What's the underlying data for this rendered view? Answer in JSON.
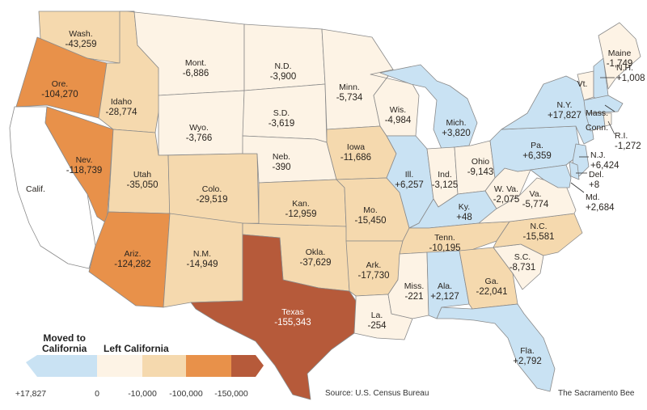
{
  "states": {
    "CA": {
      "name": "Calif.",
      "value": "",
      "fill": "#ffffff"
    },
    "WA": {
      "name": "Wash.",
      "value": "-43,259",
      "fill": "#f5d9ae"
    },
    "OR": {
      "name": "Ore.",
      "value": "-104,270",
      "fill": "#e8914a"
    },
    "ID": {
      "name": "Idaho",
      "value": "-28,774",
      "fill": "#f5d9ae"
    },
    "NV": {
      "name": "Nev.",
      "value": "-118,739",
      "fill": "#e8914a"
    },
    "MT": {
      "name": "Mont.",
      "value": "-6,886",
      "fill": "#fdf3e5"
    },
    "WY": {
      "name": "Wyo.",
      "value": "-3,766",
      "fill": "#fdf3e5"
    },
    "UT": {
      "name": "Utah",
      "value": "-35,050",
      "fill": "#f5d9ae"
    },
    "CO": {
      "name": "Colo.",
      "value": "-29,519",
      "fill": "#f5d9ae"
    },
    "AZ": {
      "name": "Ariz.",
      "value": "-124,282",
      "fill": "#e8914a"
    },
    "NM": {
      "name": "N.M.",
      "value": "-14,949",
      "fill": "#f5d9ae"
    },
    "ND": {
      "name": "N.D.",
      "value": "-3,900",
      "fill": "#fdf3e5"
    },
    "SD": {
      "name": "S.D.",
      "value": "-3,619",
      "fill": "#fdf3e5"
    },
    "NE": {
      "name": "Neb.",
      "value": "-390",
      "fill": "#fdf3e5"
    },
    "KS": {
      "name": "Kan.",
      "value": "-12,959",
      "fill": "#f5d9ae"
    },
    "OK": {
      "name": "Okla.",
      "value": "-37,629",
      "fill": "#f5d9ae"
    },
    "TX": {
      "name": "Texas",
      "value": "-155,343",
      "fill": "#b65a3a"
    },
    "MN": {
      "name": "Minn.",
      "value": "-5,734",
      "fill": "#fdf3e5"
    },
    "IA": {
      "name": "Iowa",
      "value": "-11,686",
      "fill": "#f5d9ae"
    },
    "MO": {
      "name": "Mo.",
      "value": "-15,450",
      "fill": "#f5d9ae"
    },
    "AR": {
      "name": "Ark.",
      "value": "-17,730",
      "fill": "#f5d9ae"
    },
    "LA": {
      "name": "La.",
      "value": "-254",
      "fill": "#fdf3e5"
    },
    "WI": {
      "name": "Wis.",
      "value": "-4,984",
      "fill": "#fdf3e5"
    },
    "IL": {
      "name": "Ill.",
      "value": "+6,257",
      "fill": "#c9e2f3"
    },
    "MI": {
      "name": "Mich.",
      "value": "+3,820",
      "fill": "#c9e2f3"
    },
    "IN": {
      "name": "Ind.",
      "value": "-3,125",
      "fill": "#fdf3e5"
    },
    "OH": {
      "name": "Ohio",
      "value": "-9,143",
      "fill": "#fdf3e5"
    },
    "KY": {
      "name": "Ky.",
      "value": "+48",
      "fill": "#c9e2f3"
    },
    "TN": {
      "name": "Tenn.",
      "value": "-10,195",
      "fill": "#f5d9ae"
    },
    "MS": {
      "name": "Miss.",
      "value": "-221",
      "fill": "#fdf3e5"
    },
    "AL": {
      "name": "Ala.",
      "value": "+2,127",
      "fill": "#c9e2f3"
    },
    "GA": {
      "name": "Ga.",
      "value": "-22,041",
      "fill": "#f5d9ae"
    },
    "FL": {
      "name": "Fla.",
      "value": "+2,792",
      "fill": "#c9e2f3"
    },
    "SC": {
      "name": "S.C.",
      "value": "-8,731",
      "fill": "#fdf3e5"
    },
    "NC": {
      "name": "N.C.",
      "value": "-15,581",
      "fill": "#f5d9ae"
    },
    "VA": {
      "name": "Va.",
      "value": "-5,774",
      "fill": "#fdf3e5"
    },
    "WV": {
      "name": "W. Va.",
      "value": "-2,075",
      "fill": "#fdf3e5"
    },
    "PA": {
      "name": "Pa.",
      "value": "+6,359",
      "fill": "#c9e2f3"
    },
    "NY": {
      "name": "N.Y.",
      "value": "+17,827",
      "fill": "#c9e2f3"
    },
    "VT": {
      "name": "Vt.",
      "value": "",
      "fill": "#fdf3e5"
    },
    "NH": {
      "name": "N.H.",
      "value": "+1,008",
      "fill": "#c9e2f3"
    },
    "ME": {
      "name": "Maine",
      "value": "-1,749",
      "fill": "#fdf3e5"
    },
    "MA": {
      "name": "Mass.",
      "value": "",
      "fill": "#c9e2f3"
    },
    "CT": {
      "name": "Conn.",
      "value": "",
      "fill": "#c9e2f3"
    },
    "RI": {
      "name": "R.I.",
      "value": "-1,272",
      "fill": "#fdf3e5"
    },
    "NJ": {
      "name": "N.J.",
      "value": "+6,424",
      "fill": "#c9e2f3"
    },
    "DE": {
      "name": "Del.",
      "value": "+8",
      "fill": "#c9e2f3"
    },
    "MD": {
      "name": "Md.",
      "value": "+2,684",
      "fill": "#c9e2f3"
    }
  },
  "legend": {
    "moved_title_1": "Moved to",
    "moved_title_2": "California",
    "left_title": "Left California",
    "ticks": [
      "+17,827",
      "0",
      "-10,000",
      "-100,000",
      "-150,000"
    ],
    "colors": {
      "moved": "#c9e2f3",
      "left_lt_10000": "#fdf3e5",
      "left_10000_100000": "#f5d9ae",
      "left_100000_150000": "#e8914a",
      "left_gt_150000": "#b65a3a"
    }
  },
  "source": "Source: U.S. Census Bureau",
  "credit": "The Sacramento Bee"
}
